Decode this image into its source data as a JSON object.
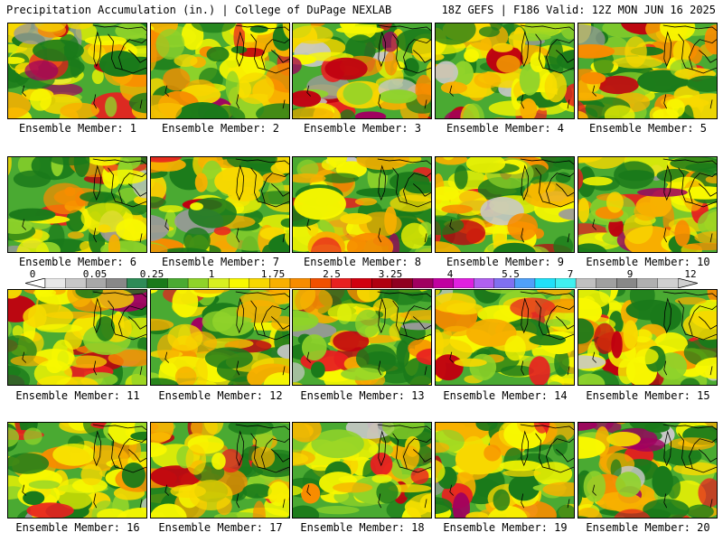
{
  "header": {
    "left": "Precipitation Accumulation (in.) | College of DuPage NEXLAB",
    "right": "18Z GEFS | F186 Valid: 12Z MON JUN 16 2025"
  },
  "caption_prefix": "Ensemble Member:",
  "panels": [
    {
      "label": "Ensemble Member: 1"
    },
    {
      "label": "Ensemble Member: 2"
    },
    {
      "label": "Ensemble Member: 3"
    },
    {
      "label": "Ensemble Member: 4"
    },
    {
      "label": "Ensemble Member: 5"
    },
    {
      "label": "Ensemble Member: 6"
    },
    {
      "label": "Ensemble Member: 7"
    },
    {
      "label": "Ensemble Member: 8"
    },
    {
      "label": "Ensemble Member: 9"
    },
    {
      "label": "Ensemble Member: 10"
    },
    {
      "label": "Ensemble Member: 11"
    },
    {
      "label": "Ensemble Member: 12"
    },
    {
      "label": "Ensemble Member: 13"
    },
    {
      "label": "Ensemble Member: 14"
    },
    {
      "label": "Ensemble Member: 15"
    },
    {
      "label": "Ensemble Member: 16"
    },
    {
      "label": "Ensemble Member: 17"
    },
    {
      "label": "Ensemble Member: 18"
    },
    {
      "label": "Ensemble Member: 19"
    },
    {
      "label": "Ensemble Member: 20"
    }
  ],
  "colorbar": {
    "tick_labels": [
      "0",
      "0.05",
      "0.25",
      "1",
      "1.75",
      "2.5",
      "3.25",
      "4",
      "5.5",
      "7",
      "9",
      "12"
    ],
    "colors": [
      "#e8e8e8",
      "#c8c8c8",
      "#a8a8a8",
      "#888888",
      "#2e8b57",
      "#1a7a1a",
      "#4aaa32",
      "#8fd32a",
      "#d8f020",
      "#f8f800",
      "#f8d800",
      "#f8b000",
      "#f88c00",
      "#f05000",
      "#e82020",
      "#d00010",
      "#b00010",
      "#900020",
      "#a00060",
      "#c000a0",
      "#e020e0",
      "#b060f0",
      "#8070f0",
      "#50a0f8",
      "#20e0f8",
      "#40f0f0",
      "#c0c0c0",
      "#a0a0a0",
      "#888888",
      "#b0b0b0",
      "#d0d0d0"
    ]
  }
}
